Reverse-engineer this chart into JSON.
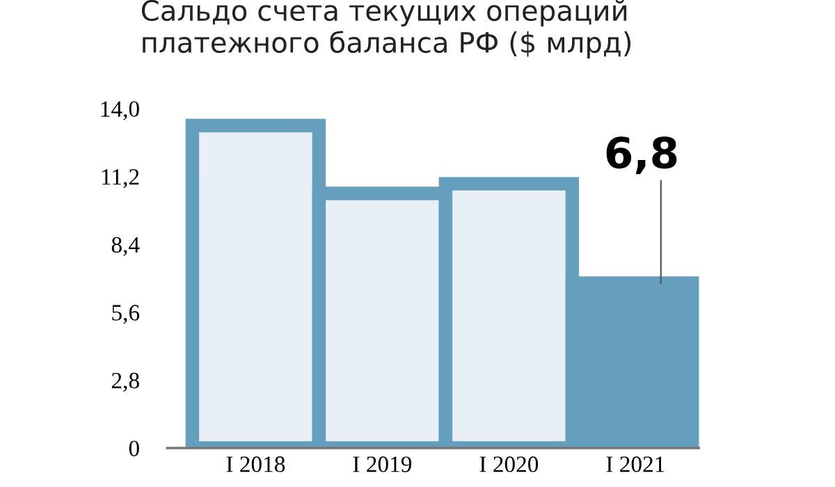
{
  "chart_data": {
    "type": "bar",
    "title": "Сальдо счета текущих операций\nплатежного баланса РФ ($ млрд)",
    "categories": [
      "I 2018",
      "I 2019",
      "I 2020",
      "I 2021"
    ],
    "values": [
      13.3,
      10.5,
      10.9,
      6.8
    ],
    "value_labels": [
      null,
      null,
      null,
      "6,8"
    ],
    "color": "#659fbd",
    "colors": [
      "#e8eff6",
      "#e8eff6",
      "#e8eff6",
      "#659fbd"
    ],
    "ylim": [
      0,
      14.0
    ],
    "yticks": [
      0,
      {
        "value": 2.8,
        "label": "2,8"
      },
      {
        "value": 5.6,
        "label": "5,6"
      },
      {
        "value": 8.4,
        "label": "8,4"
      },
      {
        "value": 11.2,
        "label": "11,2"
      },
      {
        "value": 14.0,
        "label": "14,0"
      }
    ],
    "grid": false,
    "legend": false
  }
}
